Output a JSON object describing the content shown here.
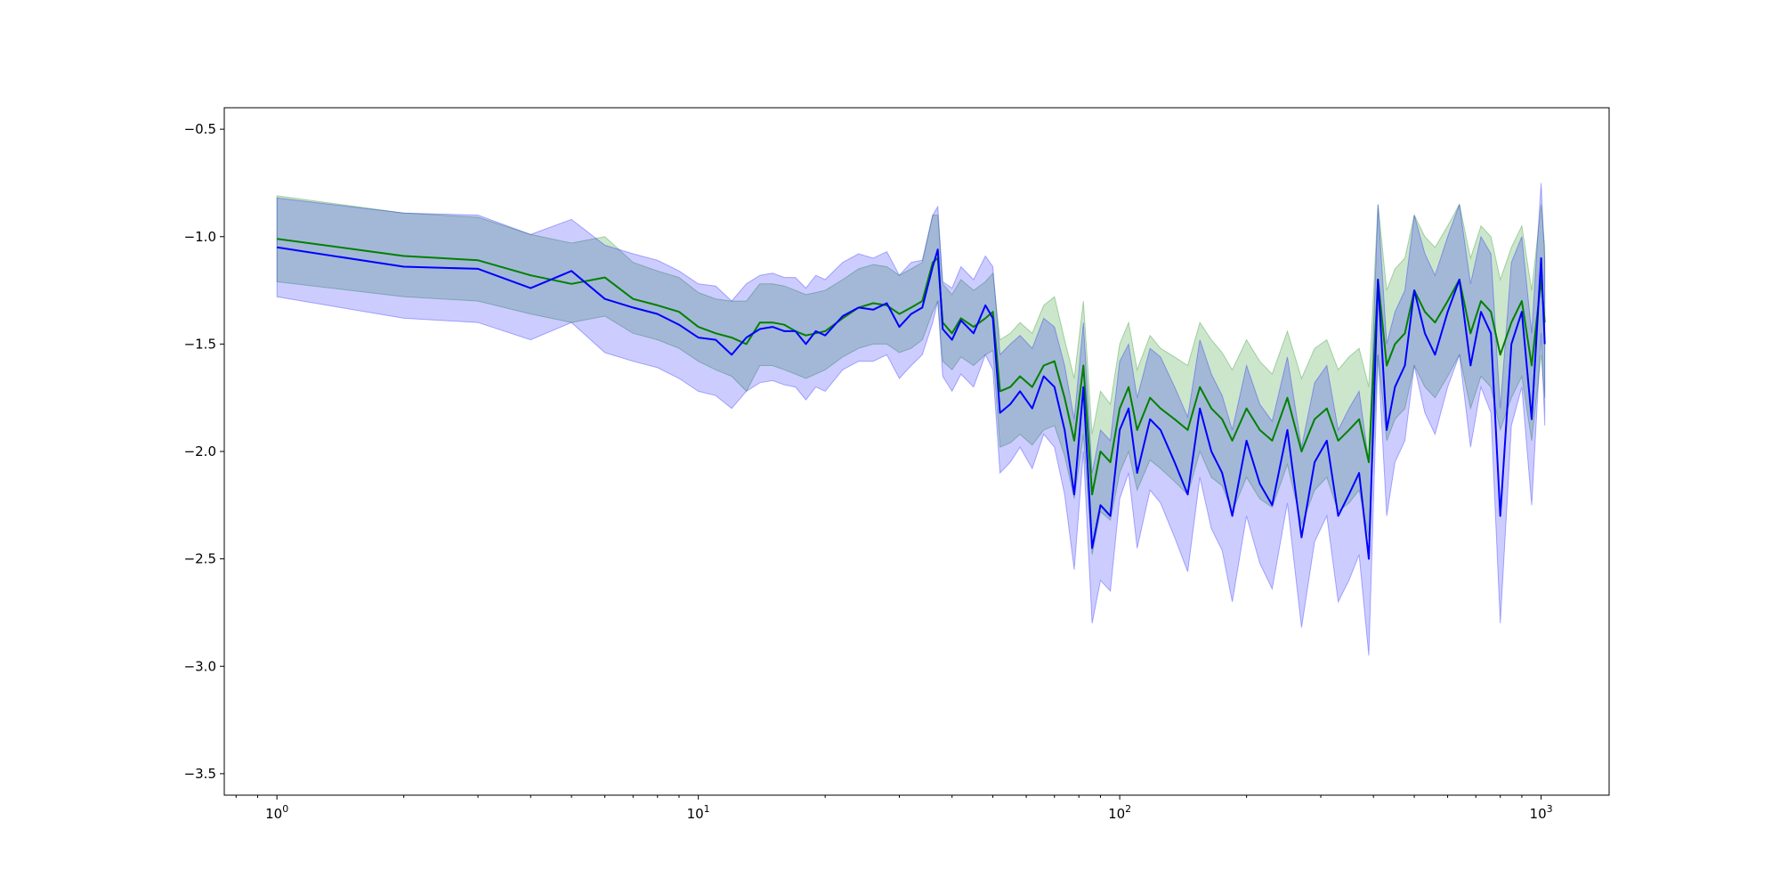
{
  "chart_data": {
    "type": "line",
    "title": "",
    "xlabel": "",
    "ylabel": "",
    "xscale": "log",
    "xlim": [
      0.75,
      1450
    ],
    "ylim": [
      -3.6,
      -0.4
    ],
    "grid": false,
    "x_ticks": [
      {
        "value": 1,
        "base": "10",
        "exp": "0"
      },
      {
        "value": 10,
        "base": "10",
        "exp": "1"
      },
      {
        "value": 100,
        "base": "10",
        "exp": "2"
      },
      {
        "value": 1000,
        "base": "10",
        "exp": "3"
      }
    ],
    "y_ticks": [
      {
        "value": -0.5,
        "label": "−0.5"
      },
      {
        "value": -1.0,
        "label": "−1.0"
      },
      {
        "value": -1.5,
        "label": "−1.5"
      },
      {
        "value": -2.0,
        "label": "−2.0"
      },
      {
        "value": -2.5,
        "label": "−2.5"
      },
      {
        "value": -3.0,
        "label": "−3.0"
      },
      {
        "value": -3.5,
        "label": "−3.5"
      }
    ],
    "series": [
      {
        "color": "#008000",
        "band_color": "#008000",
        "band_opacity": 0.2,
        "x": [
          1,
          2,
          3,
          4,
          5,
          6,
          7,
          8,
          9,
          10,
          11,
          12,
          13,
          14,
          15,
          16,
          17,
          18,
          19,
          20,
          22,
          24,
          26,
          28,
          30,
          32,
          34,
          36,
          37,
          38,
          40,
          42,
          45,
          48,
          50,
          52,
          55,
          58,
          62,
          66,
          70,
          74,
          78,
          82,
          86,
          90,
          95,
          100,
          105,
          110,
          118,
          125,
          135,
          145,
          155,
          165,
          175,
          185,
          200,
          215,
          230,
          250,
          270,
          290,
          310,
          330,
          350,
          370,
          390,
          410,
          430,
          450,
          475,
          500,
          530,
          560,
          600,
          640,
          680,
          720,
          760,
          800,
          850,
          900,
          950,
          1000,
          1020
        ],
        "y": [
          -1.01,
          -1.09,
          -1.11,
          -1.18,
          -1.22,
          -1.19,
          -1.29,
          -1.32,
          -1.35,
          -1.42,
          -1.45,
          -1.47,
          -1.5,
          -1.4,
          -1.4,
          -1.41,
          -1.44,
          -1.46,
          -1.45,
          -1.44,
          -1.38,
          -1.33,
          -1.31,
          -1.32,
          -1.36,
          -1.33,
          -1.3,
          -1.12,
          -1.1,
          -1.4,
          -1.45,
          -1.38,
          -1.42,
          -1.38,
          -1.35,
          -1.72,
          -1.7,
          -1.65,
          -1.7,
          -1.6,
          -1.58,
          -1.75,
          -1.95,
          -1.6,
          -2.2,
          -2.0,
          -2.05,
          -1.8,
          -1.7,
          -1.9,
          -1.75,
          -1.8,
          -1.85,
          -1.9,
          -1.7,
          -1.8,
          -1.85,
          -1.95,
          -1.8,
          -1.9,
          -1.95,
          -1.75,
          -2.0,
          -1.85,
          -1.8,
          -1.95,
          -1.9,
          -1.85,
          -2.05,
          -1.2,
          -1.6,
          -1.5,
          -1.45,
          -1.25,
          -1.35,
          -1.4,
          -1.3,
          -1.2,
          -1.45,
          -1.3,
          -1.35,
          -1.55,
          -1.4,
          -1.3,
          -1.6,
          -1.2,
          -1.4
        ],
        "lower": [
          -1.21,
          -1.28,
          -1.3,
          -1.36,
          -1.4,
          -1.37,
          -1.45,
          -1.48,
          -1.52,
          -1.58,
          -1.62,
          -1.65,
          -1.72,
          -1.6,
          -1.6,
          -1.62,
          -1.64,
          -1.66,
          -1.64,
          -1.62,
          -1.56,
          -1.52,
          -1.5,
          -1.5,
          -1.54,
          -1.52,
          -1.48,
          -1.35,
          -1.3,
          -1.58,
          -1.62,
          -1.56,
          -1.6,
          -1.55,
          -1.53,
          -1.98,
          -1.96,
          -1.92,
          -1.97,
          -1.9,
          -1.88,
          -2.02,
          -2.22,
          -1.92,
          -2.48,
          -2.28,
          -2.32,
          -2.1,
          -2.0,
          -2.18,
          -2.04,
          -2.08,
          -2.14,
          -2.2,
          -2.0,
          -2.12,
          -2.16,
          -2.28,
          -2.12,
          -2.22,
          -2.26,
          -2.06,
          -2.34,
          -2.18,
          -2.12,
          -2.28,
          -2.24,
          -2.18,
          -2.4,
          -1.55,
          -1.95,
          -1.85,
          -1.8,
          -1.6,
          -1.7,
          -1.75,
          -1.65,
          -1.55,
          -1.8,
          -1.65,
          -1.7,
          -1.9,
          -1.75,
          -1.65,
          -1.95,
          -1.55,
          -1.75
        ],
        "upper": [
          -0.81,
          -0.89,
          -0.91,
          -0.99,
          -1.03,
          -1.0,
          -1.12,
          -1.16,
          -1.19,
          -1.26,
          -1.29,
          -1.3,
          -1.3,
          -1.22,
          -1.22,
          -1.23,
          -1.25,
          -1.27,
          -1.26,
          -1.25,
          -1.2,
          -1.15,
          -1.13,
          -1.14,
          -1.18,
          -1.15,
          -1.12,
          -0.9,
          -0.9,
          -1.22,
          -1.27,
          -1.2,
          -1.25,
          -1.21,
          -1.17,
          -1.48,
          -1.45,
          -1.4,
          -1.45,
          -1.32,
          -1.28,
          -1.48,
          -1.66,
          -1.3,
          -1.92,
          -1.72,
          -1.78,
          -1.5,
          -1.4,
          -1.62,
          -1.46,
          -1.52,
          -1.56,
          -1.6,
          -1.4,
          -1.48,
          -1.54,
          -1.62,
          -1.48,
          -1.58,
          -1.64,
          -1.44,
          -1.66,
          -1.52,
          -1.48,
          -1.62,
          -1.56,
          -1.52,
          -1.7,
          -0.85,
          -1.25,
          -1.15,
          -1.1,
          -0.9,
          -1.0,
          -1.05,
          -0.95,
          -0.85,
          -1.1,
          -0.95,
          -1.0,
          -1.2,
          -1.05,
          -0.95,
          -1.25,
          -0.85,
          -1.05
        ]
      },
      {
        "color": "#0000ff",
        "band_color": "#0000ff",
        "band_opacity": 0.2,
        "x": [
          1,
          2,
          3,
          4,
          5,
          6,
          7,
          8,
          9,
          10,
          11,
          12,
          13,
          14,
          15,
          16,
          17,
          18,
          19,
          20,
          22,
          24,
          26,
          28,
          30,
          32,
          34,
          36,
          37,
          38,
          40,
          42,
          45,
          48,
          50,
          52,
          55,
          58,
          62,
          66,
          70,
          74,
          78,
          82,
          86,
          90,
          95,
          100,
          105,
          110,
          118,
          125,
          135,
          145,
          155,
          165,
          175,
          185,
          200,
          215,
          230,
          250,
          270,
          290,
          310,
          330,
          350,
          370,
          390,
          410,
          430,
          450,
          475,
          500,
          530,
          560,
          600,
          640,
          680,
          720,
          760,
          800,
          850,
          900,
          950,
          1000,
          1020
        ],
        "y": [
          -1.05,
          -1.14,
          -1.15,
          -1.24,
          -1.16,
          -1.29,
          -1.33,
          -1.36,
          -1.41,
          -1.47,
          -1.48,
          -1.55,
          -1.47,
          -1.43,
          -1.42,
          -1.44,
          -1.44,
          -1.5,
          -1.44,
          -1.46,
          -1.37,
          -1.33,
          -1.34,
          -1.31,
          -1.42,
          -1.36,
          -1.33,
          -1.14,
          -1.06,
          -1.43,
          -1.48,
          -1.39,
          -1.45,
          -1.32,
          -1.38,
          -1.82,
          -1.78,
          -1.72,
          -1.8,
          -1.65,
          -1.7,
          -1.9,
          -2.2,
          -1.7,
          -2.45,
          -2.25,
          -2.3,
          -1.9,
          -1.8,
          -2.1,
          -1.85,
          -1.9,
          -2.05,
          -2.2,
          -1.8,
          -2.0,
          -2.1,
          -2.3,
          -1.95,
          -2.15,
          -2.25,
          -1.9,
          -2.4,
          -2.05,
          -1.95,
          -2.3,
          -2.2,
          -2.1,
          -2.5,
          -1.2,
          -1.9,
          -1.7,
          -1.6,
          -1.25,
          -1.45,
          -1.55,
          -1.35,
          -1.2,
          -1.6,
          -1.35,
          -1.45,
          -2.3,
          -1.5,
          -1.35,
          -1.85,
          -1.1,
          -1.5
        ],
        "lower": [
          -1.28,
          -1.38,
          -1.4,
          -1.48,
          -1.4,
          -1.54,
          -1.58,
          -1.61,
          -1.66,
          -1.72,
          -1.74,
          -1.8,
          -1.72,
          -1.68,
          -1.67,
          -1.69,
          -1.7,
          -1.76,
          -1.7,
          -1.72,
          -1.62,
          -1.58,
          -1.58,
          -1.55,
          -1.66,
          -1.6,
          -1.55,
          -1.4,
          -1.3,
          -1.65,
          -1.72,
          -1.64,
          -1.7,
          -1.55,
          -1.62,
          -2.1,
          -2.05,
          -1.98,
          -2.08,
          -1.92,
          -1.98,
          -2.2,
          -2.55,
          -2.0,
          -2.8,
          -2.6,
          -2.65,
          -2.22,
          -2.1,
          -2.45,
          -2.18,
          -2.24,
          -2.4,
          -2.56,
          -2.12,
          -2.36,
          -2.46,
          -2.7,
          -2.3,
          -2.52,
          -2.64,
          -2.24,
          -2.82,
          -2.42,
          -2.3,
          -2.7,
          -2.6,
          -2.48,
          -2.95,
          -1.55,
          -2.3,
          -2.05,
          -1.95,
          -1.6,
          -1.82,
          -1.92,
          -1.7,
          -1.55,
          -1.98,
          -1.7,
          -1.82,
          -2.8,
          -1.88,
          -1.7,
          -2.25,
          -1.45,
          -1.88
        ],
        "upper": [
          -0.82,
          -0.89,
          -0.9,
          -0.99,
          -0.92,
          -1.04,
          -1.08,
          -1.11,
          -1.16,
          -1.22,
          -1.23,
          -1.3,
          -1.22,
          -1.18,
          -1.17,
          -1.19,
          -1.19,
          -1.24,
          -1.18,
          -1.2,
          -1.12,
          -1.08,
          -1.1,
          -1.07,
          -1.18,
          -1.12,
          -1.11,
          -0.9,
          -0.86,
          -1.21,
          -1.24,
          -1.14,
          -1.2,
          -1.09,
          -1.14,
          -1.55,
          -1.5,
          -1.46,
          -1.52,
          -1.38,
          -1.42,
          -1.6,
          -1.85,
          -1.4,
          -2.1,
          -1.9,
          -1.95,
          -1.58,
          -1.5,
          -1.75,
          -1.52,
          -1.56,
          -1.7,
          -1.84,
          -1.48,
          -1.64,
          -1.74,
          -1.9,
          -1.6,
          -1.78,
          -1.86,
          -1.56,
          -1.98,
          -1.68,
          -1.6,
          -1.9,
          -1.8,
          -1.72,
          -2.05,
          -0.85,
          -1.5,
          -1.35,
          -1.25,
          -0.9,
          -1.08,
          -1.18,
          -1.0,
          -0.85,
          -1.22,
          -1.0,
          -1.08,
          -1.8,
          -1.12,
          -1.0,
          -1.45,
          -0.75,
          -1.12
        ]
      }
    ]
  }
}
